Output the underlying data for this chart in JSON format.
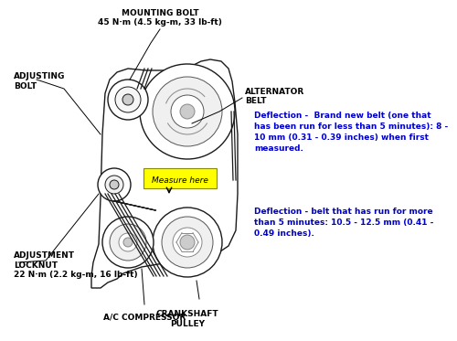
{
  "bg_color": "#ffffff",
  "text_color_labels": "#000000",
  "text_color_deflection": "#0000cc",
  "deflection_text1": "Deflection -  Brand new belt (one that\nhas been run for less than 5 minutes): 8 -\n10 mm (0.31 - 0.39 inches) when first\nmeasured.",
  "deflection_text2": "Deflection - belt that has run for more\nthan 5 minutes: 10.5 - 12.5 mm (0.41 -\n0.49 inches).",
  "deflection_fontsize": 6.5,
  "label_fontsize": 6.5,
  "measure_text": "Measure here",
  "measure_color": "#ffff00",
  "label_mounting_bolt": "MOUNTING BOLT\n45 N·m (4.5 kg-m, 33 lb-ft)",
  "label_adjusting_bolt": "ADJUSTING\nBOLT",
  "label_alternator_belt": "ALTERNATOR\nBELT",
  "label_adjustment_locknut": "ADJUSTMENT\nLOCKNUT\n22 N·m (2.2 kg-m, 16 lb-ft)",
  "label_crankshaft_pulley": "CRANKSHAFT\nPULLEY",
  "label_ac_compressor": "A/C COMPRESSOR"
}
